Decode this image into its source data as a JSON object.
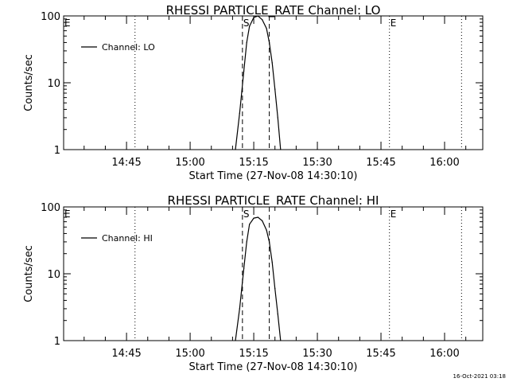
{
  "footer": {
    "timestamp": "16-Oct-2021 03:18"
  },
  "chart_data": [
    {
      "type": "line",
      "title": "RHESSI PARTICLE_RATE Channel: LO",
      "xlabel": "Start Time (27-Nov-08 14:30:10)",
      "ylabel": "Counts/sec",
      "y_scale": "log",
      "ylim": [
        1,
        100
      ],
      "y_ticks": [
        1,
        10,
        100
      ],
      "y_tick_labels": [
        "1",
        "10",
        "100"
      ],
      "xlim": [
        "14:30:10",
        "16:09:00"
      ],
      "x_ticks": [
        "14:45",
        "15:00",
        "15:15",
        "15:30",
        "15:45",
        "16:00"
      ],
      "x_tick_labels": [
        "14:45",
        "15:00",
        "15:15",
        "15:30",
        "15:45",
        "16:00"
      ],
      "legend": {
        "position": "top-left",
        "entries": [
          "Channel: LO"
        ]
      },
      "markers": [
        {
          "time": "14:30:10",
          "style": "dotted",
          "label": "E"
        },
        {
          "time": "14:47:00",
          "style": "dotted",
          "label": ""
        },
        {
          "time": "15:12:20",
          "style": "dashed",
          "label": "S"
        },
        {
          "time": "15:18:40",
          "style": "dashed",
          "label": ""
        },
        {
          "time": "15:47:00",
          "style": "dotted",
          "label": "E"
        },
        {
          "time": "16:04:00",
          "style": "dotted",
          "label": ""
        }
      ],
      "series": [
        {
          "name": "Channel: LO",
          "x": [
            "15:10:40",
            "15:11:40",
            "15:12:40",
            "15:13:20",
            "15:14:00",
            "15:15:00",
            "15:16:00",
            "15:17:00",
            "15:18:00",
            "15:18:40",
            "15:19:20",
            "15:20:00",
            "15:20:40",
            "15:21:20"
          ],
          "values": [
            1.0,
            3.5,
            15,
            40,
            70,
            95,
            100,
            88,
            65,
            40,
            20,
            8,
            3,
            1.0
          ]
        }
      ]
    },
    {
      "type": "line",
      "title": "RHESSI PARTICLE_RATE Channel: HI",
      "xlabel": "Start Time (27-Nov-08 14:30:10)",
      "ylabel": "Counts/sec",
      "y_scale": "log",
      "ylim": [
        1,
        100
      ],
      "y_ticks": [
        1,
        10,
        100
      ],
      "y_tick_labels": [
        "1",
        "10",
        "100"
      ],
      "xlim": [
        "14:30:10",
        "16:09:00"
      ],
      "x_ticks": [
        "14:45",
        "15:00",
        "15:15",
        "15:30",
        "15:45",
        "16:00"
      ],
      "x_tick_labels": [
        "14:45",
        "15:00",
        "15:15",
        "15:30",
        "15:45",
        "16:00"
      ],
      "legend": {
        "position": "top-left",
        "entries": [
          "Channel: HI"
        ]
      },
      "markers": [
        {
          "time": "14:30:10",
          "style": "dotted",
          "label": "E"
        },
        {
          "time": "14:47:00",
          "style": "dotted",
          "label": ""
        },
        {
          "time": "15:12:20",
          "style": "dashed",
          "label": "S"
        },
        {
          "time": "15:18:40",
          "style": "dashed",
          "label": ""
        },
        {
          "time": "15:47:00",
          "style": "dotted",
          "label": "E"
        },
        {
          "time": "16:04:00",
          "style": "dotted",
          "label": ""
        }
      ],
      "series": [
        {
          "name": "Channel: HI",
          "x": [
            "15:10:40",
            "15:11:40",
            "15:12:40",
            "15:13:20",
            "15:14:00",
            "15:15:00",
            "15:16:00",
            "15:17:00",
            "15:18:00",
            "15:18:40",
            "15:19:20",
            "15:20:00",
            "15:20:40",
            "15:21:20"
          ],
          "values": [
            1.0,
            3,
            12,
            30,
            55,
            68,
            70,
            62,
            45,
            30,
            15,
            6,
            2.5,
            1.0
          ]
        }
      ]
    }
  ]
}
